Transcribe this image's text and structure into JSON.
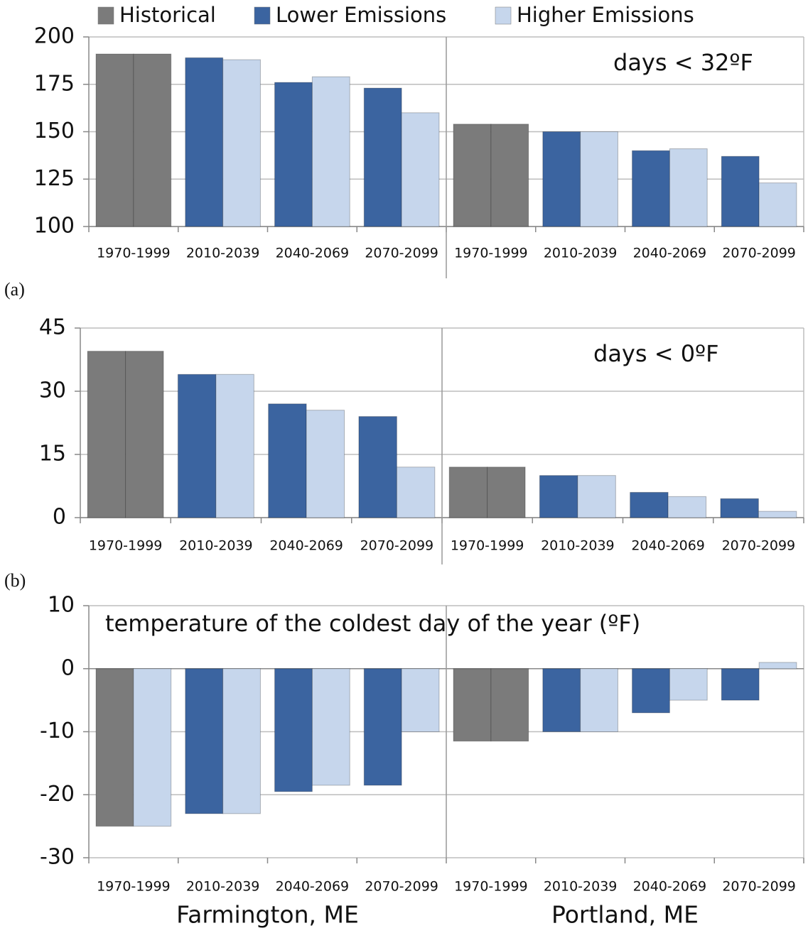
{
  "legend": [
    {
      "name": "Historical",
      "color": "#7b7b7b"
    },
    {
      "name": "Lower Emissions",
      "color": "#3b64a0"
    },
    {
      "name": "Higher Emissions",
      "color": "#c6d6ec"
    }
  ],
  "chart_data": [
    {
      "type": "bar",
      "annotation": "days < 32ºF",
      "panel_label": "(a)",
      "categories": [
        "1970-1999",
        "2010-2039",
        "2040-2069",
        "2070-2099",
        "1970-1999",
        "2010-2039",
        "2040-2069",
        "2070-2099"
      ],
      "series": [
        {
          "colors": [
            "#7b7b7b",
            "#3b64a0",
            "#3b64a0",
            "#3b64a0",
            "#7b7b7b",
            "#3b64a0",
            "#3b64a0",
            "#3b64a0"
          ],
          "values": [
            191,
            189,
            176,
            173,
            154,
            150,
            140,
            137
          ]
        },
        {
          "colors": [
            "#7b7b7b",
            "#c6d6ec",
            "#c6d6ec",
            "#c6d6ec",
            "#7b7b7b",
            "#c6d6ec",
            "#c6d6ec",
            "#c6d6ec"
          ],
          "values": [
            191,
            188,
            179,
            160,
            154,
            150,
            141,
            123
          ]
        }
      ],
      "ylim": [
        100,
        200
      ],
      "yticks": [
        100,
        125,
        150,
        175,
        200
      ],
      "grid": true
    },
    {
      "type": "bar",
      "annotation": "days < 0ºF",
      "panel_label": "(b)",
      "categories": [
        "1970-1999",
        "2010-2039",
        "2040-2069",
        "2070-2099",
        "1970-1999",
        "2010-2039",
        "2040-2069",
        "2070-2099"
      ],
      "series": [
        {
          "colors": [
            "#7b7b7b",
            "#3b64a0",
            "#3b64a0",
            "#3b64a0",
            "#7b7b7b",
            "#3b64a0",
            "#3b64a0",
            "#3b64a0"
          ],
          "values": [
            39.5,
            34,
            27,
            24,
            12,
            10,
            6,
            4.5
          ]
        },
        {
          "colors": [
            "#7b7b7b",
            "#c6d6ec",
            "#c6d6ec",
            "#c6d6ec",
            "#7b7b7b",
            "#c6d6ec",
            "#c6d6ec",
            "#c6d6ec"
          ],
          "values": [
            39.5,
            34,
            25.5,
            12,
            12,
            10,
            5,
            1.5
          ]
        }
      ],
      "ylim": [
        0,
        45
      ],
      "yticks": [
        0,
        15,
        30,
        45
      ],
      "grid": true
    },
    {
      "type": "bar",
      "annotation": "temperature of the coldest day of the year (ºF)",
      "categories": [
        "1970-1999",
        "2010-2039",
        "2040-2069",
        "2070-2099",
        "1970-1999",
        "2010-2039",
        "2040-2069",
        "2070-2099"
      ],
      "groups": [
        "Farmington, ME",
        "Portland, ME"
      ],
      "series": [
        {
          "colors": [
            "#7b7b7b",
            "#3b64a0",
            "#3b64a0",
            "#3b64a0",
            "#7b7b7b",
            "#3b64a0",
            "#3b64a0",
            "#3b64a0"
          ],
          "values": [
            -25,
            -23,
            -19.5,
            -18.5,
            -11.5,
            -10,
            -7,
            -5
          ]
        },
        {
          "colors": [
            "#c6d6ec",
            "#c6d6ec",
            "#c6d6ec",
            "#c6d6ec",
            "#7b7b7b",
            "#c6d6ec",
            "#c6d6ec",
            "#c6d6ec"
          ],
          "values": [
            -25,
            -23,
            -18.5,
            -10,
            -11.5,
            -10,
            -5,
            1
          ]
        }
      ],
      "ylim": [
        -30,
        10
      ],
      "yticks": [
        -30,
        -20,
        -10,
        0,
        10
      ],
      "grid": true
    }
  ]
}
